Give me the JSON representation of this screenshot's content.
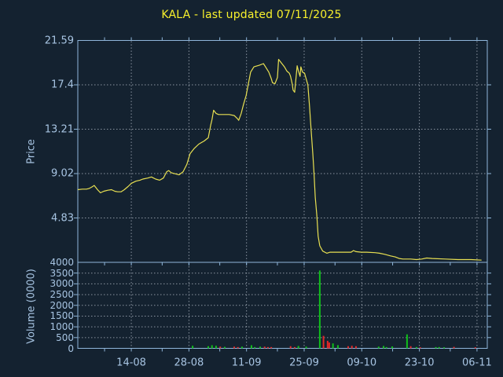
{
  "title": "KALA - last updated 07/11/2025",
  "colors": {
    "background": "#142230",
    "title_text": "#f8f12c",
    "axis_frame": "#8fb6da",
    "tick_text": "#a7c4e2",
    "grid": "#8a94a0",
    "price_line": "#e8e052",
    "volume_up": "#0fbf1a",
    "volume_down": "#e02828"
  },
  "chart_data": [
    {
      "type": "line",
      "name": "price-panel",
      "title": "KALA - last updated 07/11/2025",
      "ylabel": "Price",
      "ylim": [
        0.64,
        21.59
      ],
      "y_tick_values": [
        21.59,
        17.4,
        13.21,
        9.02,
        4.83
      ],
      "y_tick_labels": [
        "21.59",
        "17.4",
        "13.21",
        "9.02",
        "4.83"
      ],
      "x_tick_labels": [
        "14-08",
        "28-08",
        "11-09",
        "25-09",
        "09-10",
        "23-10",
        "06-11"
      ],
      "x_tick_days": [
        13,
        27,
        41,
        55,
        69,
        83,
        97
      ],
      "x_minor_tick_days": [
        6.5,
        20.5,
        34.5,
        48.5,
        62.5,
        76.5,
        90.5
      ],
      "x_span_days": 99.5,
      "grid": "dashed",
      "series": [
        {
          "name": "KALA price",
          "points": [
            [
              0,
              7.5
            ],
            [
              1.1,
              7.55
            ],
            [
              2.1,
              7.55
            ],
            [
              2.7,
              7.6
            ],
            [
              3.4,
              7.75
            ],
            [
              4,
              7.9
            ],
            [
              4.8,
              7.5
            ],
            [
              5.5,
              7.2
            ],
            [
              6.3,
              7.35
            ],
            [
              7.3,
              7.45
            ],
            [
              8.2,
              7.5
            ],
            [
              9,
              7.35
            ],
            [
              9.7,
              7.3
            ],
            [
              10.5,
              7.3
            ],
            [
              11.3,
              7.5
            ],
            [
              12.2,
              7.8
            ],
            [
              13,
              8.1
            ],
            [
              14.1,
              8.3
            ],
            [
              15.1,
              8.4
            ],
            [
              15.8,
              8.5
            ],
            [
              17,
              8.6
            ],
            [
              17.9,
              8.7
            ],
            [
              18.9,
              8.5
            ],
            [
              19.9,
              8.4
            ],
            [
              20.8,
              8.6
            ],
            [
              21.6,
              9.2
            ],
            [
              22.1,
              9.3
            ],
            [
              22.7,
              9.1
            ],
            [
              23.7,
              9
            ],
            [
              24.6,
              8.9
            ],
            [
              25.6,
              9.2
            ],
            [
              26.5,
              9.9
            ],
            [
              27.3,
              10.9
            ],
            [
              28.3,
              11.4
            ],
            [
              29.4,
              11.8
            ],
            [
              30.7,
              12.1
            ],
            [
              31.7,
              12.4
            ],
            [
              32.3,
              13.6
            ],
            [
              32.6,
              14.1
            ],
            [
              33,
              15
            ],
            [
              33.6,
              14.7
            ],
            [
              34.2,
              14.6
            ],
            [
              36.8,
              14.6
            ],
            [
              38,
              14.5
            ],
            [
              38.8,
              14.2
            ],
            [
              39.1,
              14.05
            ],
            [
              39.7,
              14.7
            ],
            [
              40.3,
              15.6
            ],
            [
              40.9,
              16.4
            ],
            [
              41.6,
              17.8
            ],
            [
              42,
              18.6
            ],
            [
              42.8,
              19.1
            ],
            [
              44.1,
              19.25
            ],
            [
              45.1,
              19.4
            ],
            [
              45.6,
              19.1
            ],
            [
              46.4,
              18.6
            ],
            [
              47,
              18
            ],
            [
              47.3,
              17.6
            ],
            [
              47.9,
              17.5
            ],
            [
              48.5,
              18.1
            ],
            [
              48.8,
              19.8
            ],
            [
              49.4,
              19.5
            ],
            [
              50.2,
              19.1
            ],
            [
              50.8,
              18.7
            ],
            [
              51.4,
              18.5
            ],
            [
              51.7,
              18.2
            ],
            [
              52.1,
              17.5
            ],
            [
              52.3,
              16.9
            ],
            [
              52.7,
              16.7
            ],
            [
              53.3,
              19.2
            ],
            [
              53.6,
              18.7
            ],
            [
              54,
              18.2
            ],
            [
              54.2,
              19.1
            ],
            [
              54.6,
              18.6
            ],
            [
              55.1,
              18.5
            ],
            [
              55.9,
              17.4
            ],
            [
              56.3,
              15.4
            ],
            [
              56.7,
              13.1
            ],
            [
              57.1,
              10.9
            ],
            [
              57.4,
              9
            ],
            [
              57.7,
              6.8
            ],
            [
              58.1,
              5
            ],
            [
              58.4,
              3.1
            ],
            [
              58.8,
              2.2
            ],
            [
              59.5,
              1.7
            ],
            [
              60.5,
              1.5
            ],
            [
              61.3,
              1.6
            ],
            [
              62.2,
              1.6
            ],
            [
              64.1,
              1.6
            ],
            [
              66.4,
              1.6
            ],
            [
              67,
              1.75
            ],
            [
              67.6,
              1.65
            ],
            [
              68.9,
              1.6
            ],
            [
              70.2,
              1.6
            ],
            [
              72.2,
              1.55
            ],
            [
              73.3,
              1.5
            ],
            [
              74.6,
              1.4
            ],
            [
              76,
              1.25
            ],
            [
              77.1,
              1.15
            ],
            [
              78.1,
              1
            ],
            [
              79,
              0.95
            ],
            [
              80.9,
              0.95
            ],
            [
              82.3,
              0.9
            ],
            [
              83.6,
              0.95
            ],
            [
              84.8,
              1.05
            ],
            [
              86.1,
              1
            ],
            [
              89.3,
              0.95
            ],
            [
              92.4,
              0.9
            ],
            [
              95.6,
              0.9
            ],
            [
              98.1,
              0.85
            ]
          ]
        }
      ]
    },
    {
      "type": "bar",
      "name": "volume-panel",
      "ylabel": "Volume (0000)",
      "ylim": [
        0,
        4000
      ],
      "y_tick_values": [
        4000,
        3500,
        3000,
        2500,
        2000,
        1500,
        1000,
        500,
        0
      ],
      "y_tick_labels": [
        "4000",
        "3500",
        "3000",
        "2500",
        "2000",
        "1500",
        "1000",
        "500",
        "0"
      ],
      "grid": "dashed",
      "bars": [
        [
          27.9,
          120,
          "u"
        ],
        [
          31.7,
          100,
          "u"
        ],
        [
          32.6,
          145,
          "u"
        ],
        [
          33.6,
          120,
          "u"
        ],
        [
          34.6,
          80,
          "d"
        ],
        [
          35.7,
          70,
          "u"
        ],
        [
          38,
          80,
          "d"
        ],
        [
          38.9,
          60,
          "d"
        ],
        [
          39.9,
          80,
          "u"
        ],
        [
          42.2,
          145,
          "u"
        ],
        [
          43,
          60,
          "u"
        ],
        [
          44.3,
          80,
          "u"
        ],
        [
          45.4,
          80,
          "d"
        ],
        [
          46.2,
          60,
          "d"
        ],
        [
          47,
          60,
          "d"
        ],
        [
          51.7,
          100,
          "d"
        ],
        [
          52.7,
          60,
          "d"
        ],
        [
          53.6,
          110,
          "u"
        ],
        [
          55.5,
          80,
          "u"
        ],
        [
          58.8,
          3620,
          "u"
        ],
        [
          59.7,
          580,
          "d"
        ],
        [
          60.7,
          350,
          "d"
        ],
        [
          61.1,
          270,
          "d"
        ],
        [
          62,
          230,
          "u"
        ],
        [
          63.2,
          150,
          "u"
        ],
        [
          65.7,
          100,
          "d"
        ],
        [
          66.6,
          120,
          "d"
        ],
        [
          67.6,
          100,
          "d"
        ],
        [
          73.1,
          80,
          "u"
        ],
        [
          74.3,
          110,
          "u"
        ],
        [
          75,
          60,
          "u"
        ],
        [
          76.4,
          90,
          "u"
        ],
        [
          80,
          650,
          "u"
        ],
        [
          80.9,
          100,
          "d"
        ],
        [
          82.3,
          60,
          "u"
        ],
        [
          83.2,
          50,
          "d"
        ],
        [
          87,
          60,
          "u"
        ],
        [
          87.8,
          60,
          "u"
        ],
        [
          89,
          50,
          "u"
        ],
        [
          91.4,
          70,
          "d"
        ],
        [
          96.6,
          50,
          "d"
        ]
      ]
    }
  ]
}
